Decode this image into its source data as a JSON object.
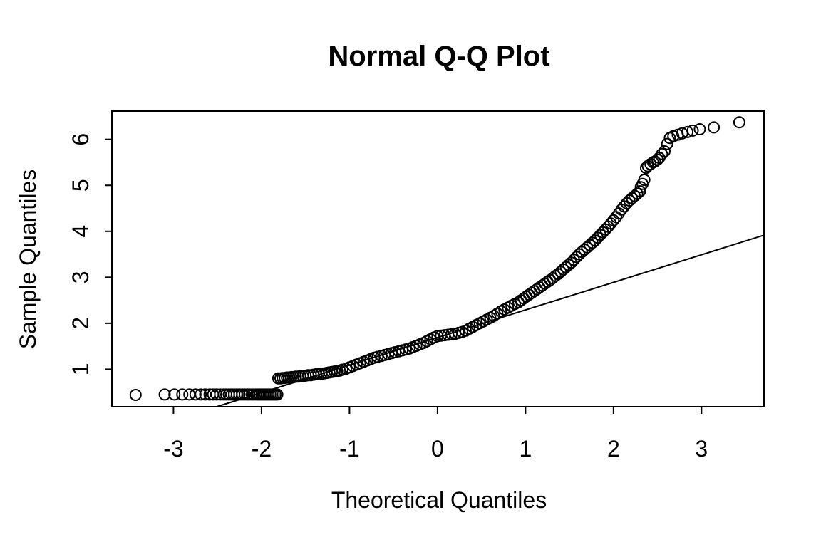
{
  "chart_data": {
    "type": "scatter",
    "title": "Normal Q-Q Plot",
    "xlabel": "Theoretical Quantiles",
    "ylabel": "Sample Quantiles",
    "x_ticks": [
      -3,
      -2,
      -1,
      0,
      1,
      2,
      3
    ],
    "y_ticks": [
      1,
      2,
      3,
      4,
      5,
      6
    ],
    "xlim": [
      -3.7,
      3.71
    ],
    "ylim": [
      0.185,
      6.615
    ],
    "grid": false,
    "legend": "none",
    "colors": {
      "points": "#000000",
      "line": "#000000",
      "background": "#ffffff"
    },
    "point_style": {
      "marker": "open-circle",
      "radius_px": 7.5
    },
    "reference_line": {
      "slope": 0.6,
      "intercept": 1.69
    },
    "points": [
      [
        -3.43,
        0.44
      ],
      [
        -3.1,
        0.45
      ],
      [
        -2.99,
        0.45
      ],
      [
        -2.9,
        0.45
      ],
      [
        -2.82,
        0.45
      ],
      [
        -2.75,
        0.45
      ],
      [
        -2.69,
        0.45
      ],
      [
        -2.64,
        0.45
      ],
      [
        -2.59,
        0.45
      ],
      [
        -2.55,
        0.45
      ],
      [
        -2.51,
        0.45
      ],
      [
        -2.47,
        0.45
      ],
      [
        -2.43,
        0.45
      ],
      [
        -2.4,
        0.45
      ],
      [
        -2.37,
        0.45
      ],
      [
        -2.34,
        0.45
      ],
      [
        -2.31,
        0.45
      ],
      [
        -2.28,
        0.45
      ],
      [
        -2.25,
        0.45
      ],
      [
        -2.22,
        0.45
      ],
      [
        -2.19,
        0.45
      ],
      [
        -2.16,
        0.45
      ],
      [
        -2.14,
        0.45
      ],
      [
        -2.11,
        0.45
      ],
      [
        -2.09,
        0.45
      ],
      [
        -2.06,
        0.45
      ],
      [
        -2.04,
        0.45
      ],
      [
        -2.02,
        0.45
      ],
      [
        -2.0,
        0.45
      ],
      [
        -1.98,
        0.45
      ],
      [
        -1.96,
        0.45
      ],
      [
        -1.94,
        0.45
      ],
      [
        -1.92,
        0.45
      ],
      [
        -1.9,
        0.45
      ],
      [
        -1.88,
        0.45
      ],
      [
        -1.86,
        0.45
      ],
      [
        -1.84,
        0.45
      ],
      [
        -1.82,
        0.45
      ],
      [
        -1.81,
        0.8
      ],
      [
        -1.785,
        0.8
      ],
      [
        -1.76,
        0.81
      ],
      [
        -1.735,
        0.81
      ],
      [
        -1.71,
        0.82
      ],
      [
        -1.685,
        0.82
      ],
      [
        -1.66,
        0.83
      ],
      [
        -1.635,
        0.83
      ],
      [
        -1.61,
        0.84
      ],
      [
        -1.585,
        0.84
      ],
      [
        -1.56,
        0.85
      ],
      [
        -1.53,
        0.85
      ],
      [
        -1.5,
        0.86
      ],
      [
        -1.47,
        0.87
      ],
      [
        -1.44,
        0.87
      ],
      [
        -1.41,
        0.88
      ],
      [
        -1.38,
        0.89
      ],
      [
        -1.35,
        0.9
      ],
      [
        -1.32,
        0.9
      ],
      [
        -1.29,
        0.91
      ],
      [
        -1.26,
        0.92
      ],
      [
        -1.23,
        0.93
      ],
      [
        -1.2,
        0.94
      ],
      [
        -1.17,
        0.95
      ],
      [
        -1.14,
        0.96
      ],
      [
        -1.11,
        0.97
      ],
      [
        -1.08,
        0.99
      ],
      [
        -1.04,
        1.01
      ],
      [
        -1.0,
        1.04
      ],
      [
        -0.96,
        1.07
      ],
      [
        -0.92,
        1.1
      ],
      [
        -0.88,
        1.13
      ],
      [
        -0.84,
        1.16
      ],
      [
        -0.8,
        1.19
      ],
      [
        -0.76,
        1.22
      ],
      [
        -0.72,
        1.25
      ],
      [
        -0.68,
        1.27
      ],
      [
        -0.64,
        1.29
      ],
      [
        -0.6,
        1.31
      ],
      [
        -0.56,
        1.33
      ],
      [
        -0.52,
        1.35
      ],
      [
        -0.48,
        1.37
      ],
      [
        -0.44,
        1.39
      ],
      [
        -0.4,
        1.41
      ],
      [
        -0.36,
        1.43
      ],
      [
        -0.32,
        1.45
      ],
      [
        -0.28,
        1.48
      ],
      [
        -0.24,
        1.51
      ],
      [
        -0.2,
        1.54
      ],
      [
        -0.16,
        1.57
      ],
      [
        -0.12,
        1.61
      ],
      [
        -0.08,
        1.65
      ],
      [
        -0.04,
        1.69
      ],
      [
        0.0,
        1.72
      ],
      [
        0.04,
        1.73
      ],
      [
        0.08,
        1.74
      ],
      [
        0.12,
        1.75
      ],
      [
        0.16,
        1.76
      ],
      [
        0.2,
        1.77
      ],
      [
        0.24,
        1.79
      ],
      [
        0.28,
        1.81
      ],
      [
        0.32,
        1.84
      ],
      [
        0.36,
        1.88
      ],
      [
        0.4,
        1.92
      ],
      [
        0.44,
        1.96
      ],
      [
        0.48,
        2.0
      ],
      [
        0.52,
        2.04
      ],
      [
        0.56,
        2.08
      ],
      [
        0.6,
        2.12
      ],
      [
        0.64,
        2.16
      ],
      [
        0.68,
        2.21
      ],
      [
        0.72,
        2.26
      ],
      [
        0.76,
        2.3
      ],
      [
        0.8,
        2.34
      ],
      [
        0.84,
        2.38
      ],
      [
        0.88,
        2.42
      ],
      [
        0.92,
        2.46
      ],
      [
        0.95,
        2.5
      ],
      [
        0.98,
        2.54
      ],
      [
        1.01,
        2.58
      ],
      [
        1.04,
        2.62
      ],
      [
        1.07,
        2.66
      ],
      [
        1.1,
        2.7
      ],
      [
        1.13,
        2.74
      ],
      [
        1.16,
        2.78
      ],
      [
        1.19,
        2.82
      ],
      [
        1.22,
        2.86
      ],
      [
        1.25,
        2.9
      ],
      [
        1.28,
        2.94
      ],
      [
        1.31,
        2.98
      ],
      [
        1.34,
        3.03
      ],
      [
        1.37,
        3.07
      ],
      [
        1.4,
        3.12
      ],
      [
        1.43,
        3.17
      ],
      [
        1.46,
        3.22
      ],
      [
        1.49,
        3.27
      ],
      [
        1.52,
        3.32
      ],
      [
        1.55,
        3.38
      ],
      [
        1.58,
        3.44
      ],
      [
        1.61,
        3.5
      ],
      [
        1.64,
        3.55
      ],
      [
        1.67,
        3.6
      ],
      [
        1.7,
        3.65
      ],
      [
        1.73,
        3.7
      ],
      [
        1.76,
        3.75
      ],
      [
        1.79,
        3.8
      ],
      [
        1.82,
        3.86
      ],
      [
        1.85,
        3.92
      ],
      [
        1.88,
        3.98
      ],
      [
        1.91,
        4.04
      ],
      [
        1.94,
        4.1
      ],
      [
        1.97,
        4.17
      ],
      [
        2.0,
        4.24
      ],
      [
        2.03,
        4.31
      ],
      [
        2.06,
        4.39
      ],
      [
        2.09,
        4.47
      ],
      [
        2.12,
        4.54
      ],
      [
        2.15,
        4.61
      ],
      [
        2.18,
        4.67
      ],
      [
        2.21,
        4.72
      ],
      [
        2.24,
        4.77
      ],
      [
        2.27,
        4.82
      ],
      [
        2.3,
        4.87
      ],
      [
        2.31,
        4.96
      ],
      [
        2.33,
        5.03
      ],
      [
        2.35,
        5.12
      ],
      [
        2.37,
        5.38
      ],
      [
        2.39,
        5.42
      ],
      [
        2.42,
        5.46
      ],
      [
        2.45,
        5.5
      ],
      [
        2.47,
        5.52
      ],
      [
        2.5,
        5.56
      ],
      [
        2.52,
        5.6
      ],
      [
        2.55,
        5.68
      ],
      [
        2.58,
        5.74
      ],
      [
        2.61,
        5.9
      ],
      [
        2.64,
        6.03
      ],
      [
        2.68,
        6.07
      ],
      [
        2.73,
        6.1
      ],
      [
        2.78,
        6.13
      ],
      [
        2.84,
        6.16
      ],
      [
        2.9,
        6.19
      ],
      [
        2.98,
        6.22
      ],
      [
        3.14,
        6.26
      ],
      [
        3.43,
        6.37
      ]
    ]
  }
}
